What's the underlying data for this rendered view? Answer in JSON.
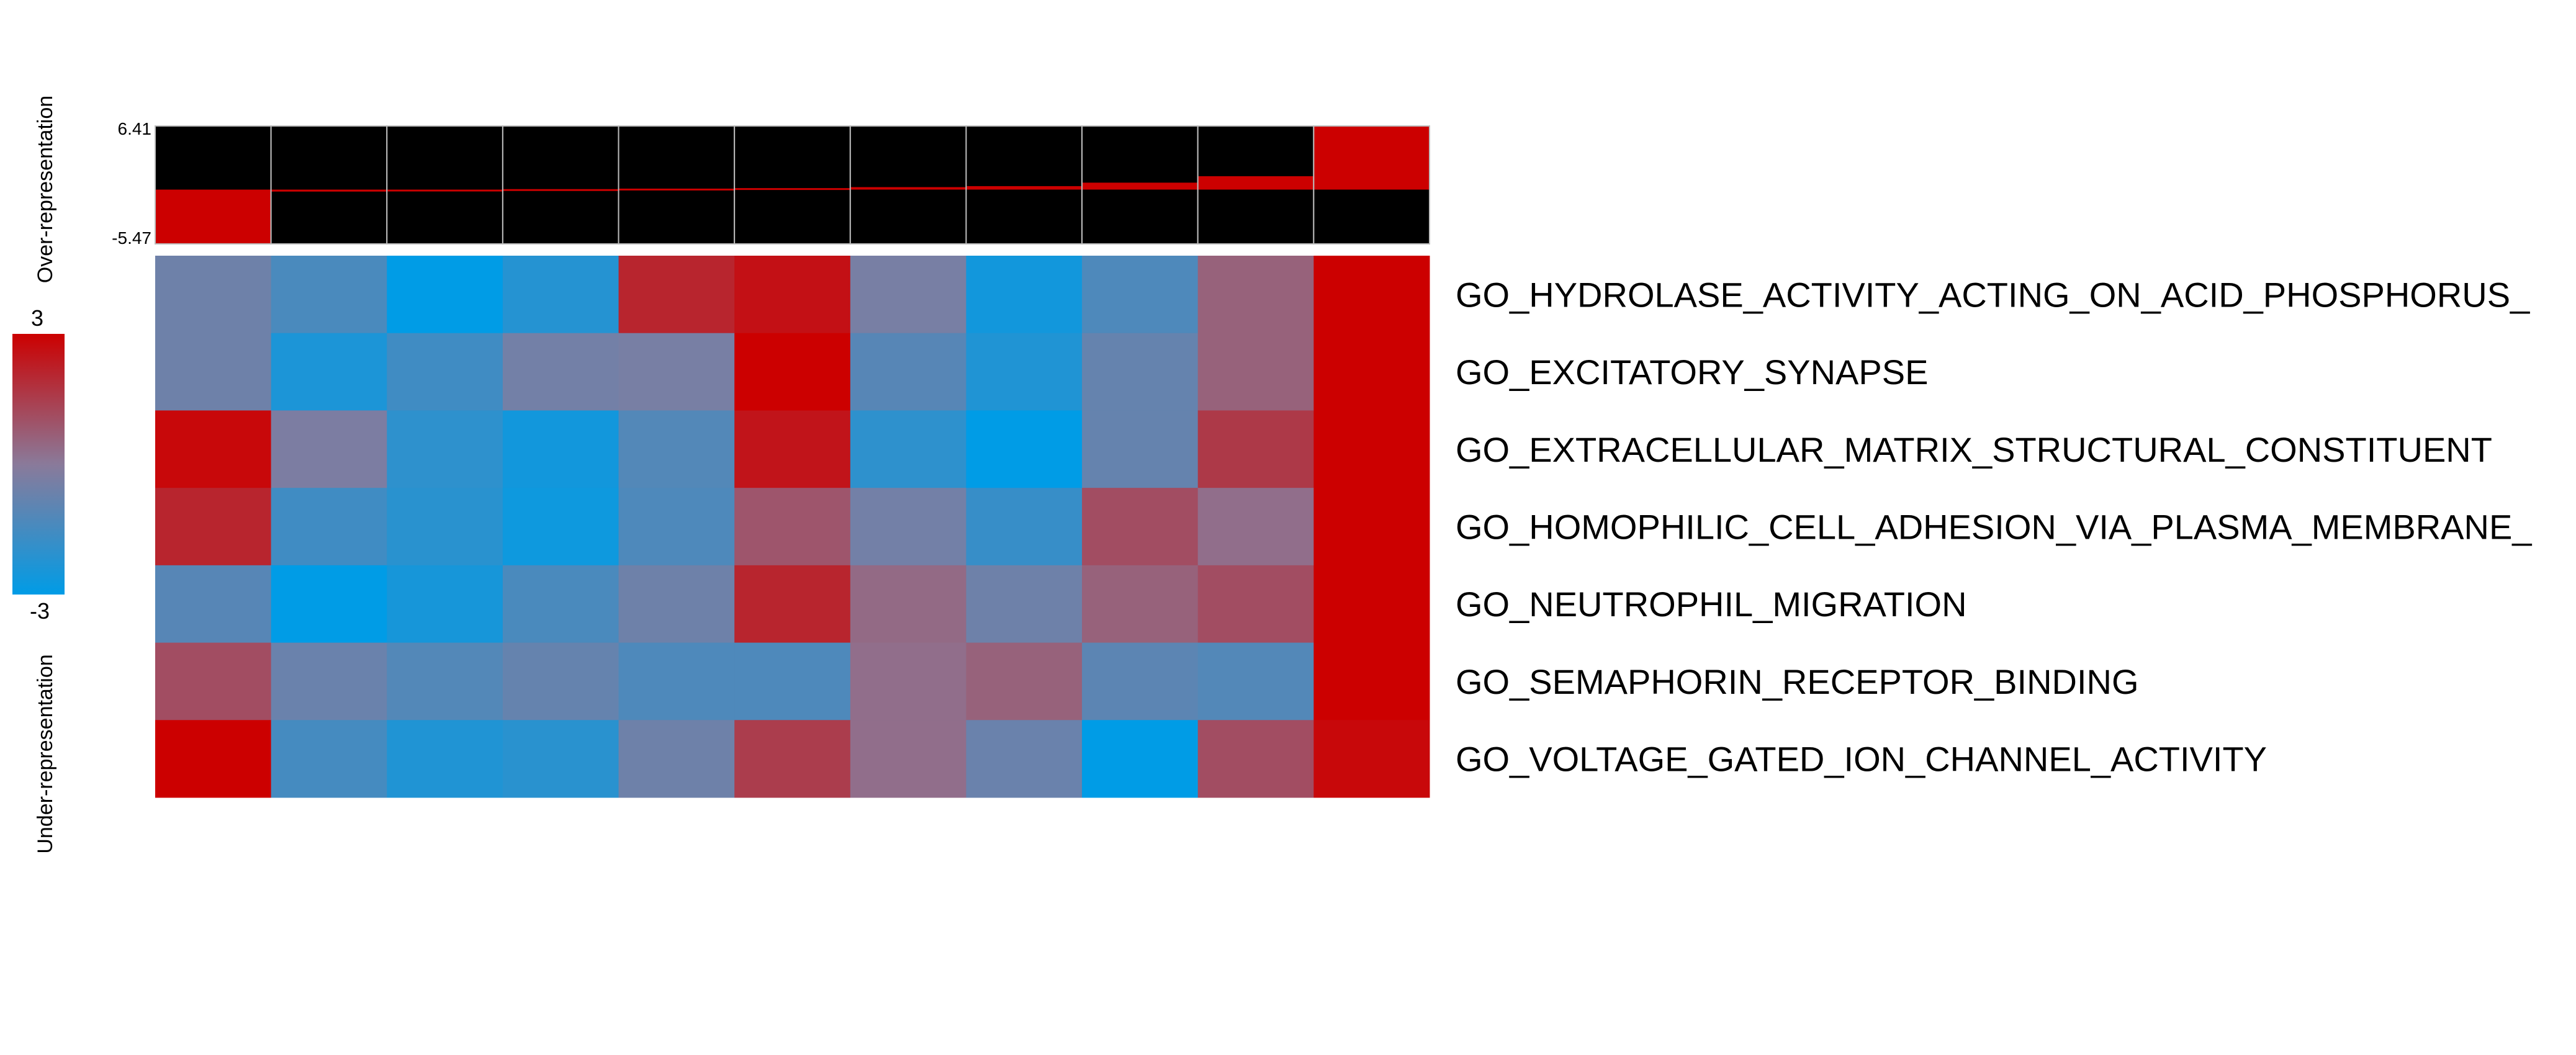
{
  "chart_data": [
    {
      "type": "bar",
      "role": "top-annotation-score-bars",
      "ylim": [
        -5.47,
        6.41
      ],
      "tick_labels": {
        "max": "6.41",
        "min": "-5.47"
      },
      "values": [
        -5.47,
        -0.2,
        -0.05,
        0.05,
        0.1,
        0.15,
        0.25,
        0.35,
        0.7,
        1.35,
        6.41
      ]
    },
    {
      "type": "heatmap",
      "rows": [
        "GO_HYDROLASE_ACTIVITY_ACTING_ON_ACID_PHOSPHORUS_",
        "GO_EXCITATORY_SYNAPSE",
        "GO_EXTRACELLULAR_MATRIX_STRUCTURAL_CONSTITUENT",
        "GO_HOMOPHILIC_CELL_ADHESION_VIA_PLASMA_MEMBRANE_",
        "GO_NEUTROPHIL_MIGRATION",
        "GO_SEMAPHORIN_RECEPTOR_BINDING",
        "GO_VOLTAGE_GATED_ION_CHANNEL_ACTIVITY"
      ],
      "values": [
        [
          -0.6,
          -1.4,
          -3.0,
          -2.2,
          2.1,
          2.6,
          -0.4,
          -2.6,
          -1.3,
          0.6,
          3.0
        ],
        [
          -0.6,
          -2.4,
          -1.6,
          -0.5,
          -0.4,
          3.0,
          -1.1,
          -2.3,
          -0.8,
          0.6,
          3.0
        ],
        [
          2.8,
          -0.3,
          -2.0,
          -2.6,
          -1.2,
          2.5,
          -2.0,
          -3.0,
          -0.8,
          1.6,
          3.0
        ],
        [
          2.1,
          -1.6,
          -2.1,
          -2.7,
          -1.3,
          0.9,
          -0.5,
          -1.8,
          1.1,
          0.3,
          3.0
        ],
        [
          -1.1,
          -3.0,
          -2.5,
          -1.4,
          -0.6,
          2.1,
          0.4,
          -0.6,
          0.6,
          1.1,
          3.0
        ],
        [
          1.1,
          -0.7,
          -1.2,
          -0.8,
          -1.3,
          -1.3,
          0.3,
          0.6,
          -1.0,
          -1.2,
          3.0
        ],
        [
          3.0,
          -1.5,
          -2.3,
          -2.1,
          -0.6,
          1.5,
          0.3,
          -0.7,
          -3.0,
          1.1,
          2.8
        ]
      ],
      "color_range": [
        -3,
        3
      ],
      "colors": {
        "low": "#009ce6",
        "mid": "#8a7a9a",
        "high": "#cc0000"
      },
      "legend_labels": {
        "max": "3",
        "min": "-3"
      }
    }
  ],
  "axis_labels": {
    "over": "Over-representation",
    "under": "Under-representation"
  }
}
